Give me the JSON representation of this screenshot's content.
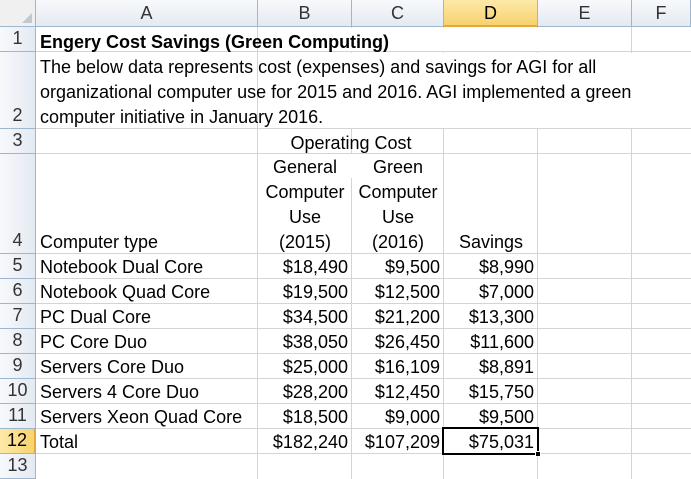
{
  "columns": [
    "A",
    "B",
    "C",
    "D",
    "E",
    "F"
  ],
  "rows": [
    "1",
    "2",
    "3",
    "4",
    "5",
    "6",
    "7",
    "8",
    "9",
    "10",
    "11",
    "12",
    "13"
  ],
  "title": "Engery Cost Savings (Green Computing)",
  "description": [
    "The below data represents cost (expenses) and savings for AGI for all",
    "organizational computer use for 2015 and 2016. AGI implemented a green",
    "computer initiative in January 2016."
  ],
  "header": {
    "operating_cost": "Operating Cost",
    "general": [
      "General",
      "Computer",
      "Use",
      "(2015)"
    ],
    "green": [
      "Green",
      "Computer",
      "Use",
      "(2016)"
    ],
    "computer_type": "Computer type",
    "savings": "Savings"
  },
  "table": [
    {
      "type": "Notebook Dual Core",
      "y2015": "$18,490",
      "y2016": "$9,500",
      "savings": "$8,990"
    },
    {
      "type": "Notebook Quad Core",
      "y2015": "$19,500",
      "y2016": "$12,500",
      "savings": "$7,000"
    },
    {
      "type": "PC Dual Core",
      "y2015": "$34,500",
      "y2016": "$21,200",
      "savings": "$13,300"
    },
    {
      "type": "PC Core Duo",
      "y2015": "$38,050",
      "y2016": "$26,450",
      "savings": "$11,600"
    },
    {
      "type": "Servers Core Duo",
      "y2015": "$25,000",
      "y2016": "$16,109",
      "savings": "$8,891"
    },
    {
      "type": "Servers 4 Core Duo",
      "y2015": "$28,200",
      "y2016": "$12,450",
      "savings": "$15,750"
    },
    {
      "type": "Servers Xeon Quad Core",
      "y2015": "$18,500",
      "y2016": "$9,000",
      "savings": "$9,500"
    }
  ],
  "total": {
    "label": "Total",
    "y2015": "$182,240",
    "y2016": "$107,209",
    "savings": "$75,031"
  },
  "selected_cell": "D12"
}
